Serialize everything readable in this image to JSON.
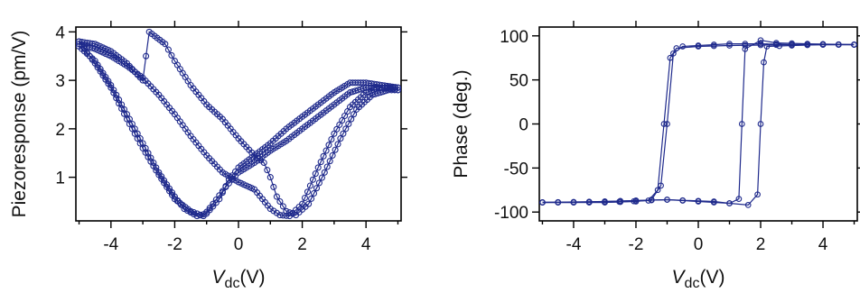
{
  "colors": {
    "series": "#1f2a8c",
    "axis": "#000000",
    "background": "#ffffff"
  },
  "chart_data": [
    {
      "type": "scatter",
      "ylabel": "Piezoresponse (pm/V)",
      "xlabel_main": "V",
      "xlabel_sub": "dc",
      "xlabel_unit": "(V)",
      "xlim": [
        -5.1,
        5.1
      ],
      "ylim": [
        0.1,
        4.1
      ],
      "xticks": [
        -4,
        -2,
        0,
        2,
        4
      ],
      "yticks": [
        1,
        2,
        3,
        4
      ],
      "xtick_labels": [
        "-4",
        "-2",
        "0",
        "2",
        "4"
      ],
      "ytick_labels": [
        "1",
        "2",
        "3",
        "4"
      ],
      "grid": false,
      "series": [
        {
          "values": [
            [
              -5.0,
              3.75
            ],
            [
              -4.5,
              3.65
            ],
            [
              -4.0,
              3.5
            ],
            [
              -3.5,
              3.3
            ],
            [
              -3.0,
              3.05
            ],
            [
              -2.5,
              2.7
            ],
            [
              -2.0,
              2.3
            ],
            [
              -1.5,
              1.85
            ],
            [
              -1.0,
              1.45
            ],
            [
              -0.5,
              1.1
            ],
            [
              0.0,
              0.9
            ],
            [
              0.5,
              0.75
            ],
            [
              1.0,
              0.35
            ],
            [
              1.3,
              0.22
            ],
            [
              1.6,
              0.2
            ],
            [
              2.0,
              0.45
            ],
            [
              2.5,
              1.2
            ],
            [
              3.0,
              1.9
            ],
            [
              3.5,
              2.45
            ],
            [
              4.0,
              2.75
            ],
            [
              4.5,
              2.85
            ],
            [
              5.0,
              2.85
            ]
          ]
        },
        {
          "values": [
            [
              5.0,
              2.85
            ],
            [
              4.5,
              2.9
            ],
            [
              4.0,
              2.95
            ],
            [
              3.5,
              2.95
            ],
            [
              3.0,
              2.75
            ],
            [
              2.5,
              2.5
            ],
            [
              2.0,
              2.25
            ],
            [
              1.5,
              2.0
            ],
            [
              1.0,
              1.7
            ],
            [
              0.5,
              1.45
            ],
            [
              0.0,
              1.2
            ],
            [
              -0.3,
              0.95
            ],
            [
              -0.6,
              0.55
            ],
            [
              -1.0,
              0.25
            ],
            [
              -1.3,
              0.2
            ],
            [
              -1.7,
              0.35
            ],
            [
              -2.0,
              0.6
            ],
            [
              -2.5,
              1.1
            ],
            [
              -3.0,
              1.7
            ],
            [
              -3.5,
              2.3
            ],
            [
              -4.0,
              2.9
            ],
            [
              -4.5,
              3.4
            ],
            [
              -5.0,
              3.7
            ]
          ]
        },
        {
          "values": [
            [
              -5.0,
              3.8
            ],
            [
              -4.5,
              3.75
            ],
            [
              -4.0,
              3.6
            ],
            [
              -3.5,
              3.35
            ],
            [
              -3.0,
              3.0
            ],
            [
              -2.8,
              4.0
            ],
            [
              -2.3,
              3.75
            ],
            [
              -2.0,
              3.4
            ],
            [
              -1.5,
              2.9
            ],
            [
              -1.0,
              2.5
            ],
            [
              -0.5,
              2.2
            ],
            [
              0.0,
              1.8
            ],
            [
              0.5,
              1.45
            ],
            [
              0.8,
              1.3
            ],
            [
              1.0,
              1.0
            ],
            [
              1.2,
              0.6
            ],
            [
              1.5,
              0.3
            ],
            [
              1.8,
              0.22
            ],
            [
              2.2,
              0.45
            ],
            [
              2.7,
              1.1
            ],
            [
              3.2,
              1.8
            ],
            [
              3.7,
              2.4
            ],
            [
              4.2,
              2.7
            ],
            [
              4.7,
              2.8
            ],
            [
              5.0,
              2.8
            ]
          ]
        },
        {
          "values": [
            [
              5.0,
              2.8
            ],
            [
              4.5,
              2.85
            ],
            [
              4.0,
              2.85
            ],
            [
              3.5,
              2.75
            ],
            [
              3.0,
              2.5
            ],
            [
              2.5,
              2.25
            ],
            [
              2.0,
              2.0
            ],
            [
              1.5,
              1.75
            ],
            [
              1.0,
              1.55
            ],
            [
              0.5,
              1.3
            ],
            [
              0.0,
              1.1
            ],
            [
              -0.4,
              0.8
            ],
            [
              -0.8,
              0.45
            ],
            [
              -1.1,
              0.2
            ],
            [
              -1.5,
              0.3
            ],
            [
              -2.0,
              0.55
            ],
            [
              -2.5,
              1.05
            ],
            [
              -3.0,
              1.6
            ],
            [
              -3.5,
              2.2
            ],
            [
              -4.0,
              2.85
            ],
            [
              -4.5,
              3.35
            ],
            [
              -5.0,
              3.8
            ]
          ]
        }
      ]
    },
    {
      "type": "line",
      "ylabel": "Phase (deg.)",
      "xlabel_main": "V",
      "xlabel_sub": "dc",
      "xlabel_unit": "(V)",
      "xlim": [
        -5.1,
        5.1
      ],
      "ylim": [
        -110,
        110
      ],
      "xticks": [
        -4,
        -2,
        0,
        2,
        4
      ],
      "yticks": [
        -100,
        -50,
        0,
        50,
        100
      ],
      "xtick_labels": [
        "-4",
        "-2",
        "0",
        "2",
        "4"
      ],
      "ytick_labels": [
        "-100",
        "-50",
        "0",
        "50",
        "100"
      ],
      "grid": false,
      "series": [
        {
          "values": [
            [
              -5.0,
              -89
            ],
            [
              -4.0,
              -89
            ],
            [
              -3.0,
              -88
            ],
            [
              -2.0,
              -87
            ],
            [
              -1.0,
              -86
            ],
            [
              0.0,
              -88
            ],
            [
              1.0,
              -90
            ],
            [
              1.6,
              -92
            ],
            [
              1.9,
              -80
            ],
            [
              2.0,
              0
            ],
            [
              2.1,
              70
            ],
            [
              2.2,
              88
            ],
            [
              3.0,
              89
            ],
            [
              4.0,
              90
            ],
            [
              5.0,
              90
            ]
          ]
        },
        {
          "values": [
            [
              5.0,
              90
            ],
            [
              4.0,
              90
            ],
            [
              3.0,
              90
            ],
            [
              2.0,
              91
            ],
            [
              1.0,
              91
            ],
            [
              0.0,
              89
            ],
            [
              -0.5,
              88
            ],
            [
              -0.8,
              80
            ],
            [
              -1.0,
              0
            ],
            [
              -1.2,
              -70
            ],
            [
              -1.5,
              -86
            ],
            [
              -2.0,
              -88
            ],
            [
              -3.0,
              -89
            ],
            [
              -4.0,
              -89
            ],
            [
              -5.0,
              -89
            ]
          ]
        },
        {
          "values": [
            [
              -5.0,
              -89
            ],
            [
              -3.0,
              -88
            ],
            [
              -1.0,
              -86
            ],
            [
              0.5,
              -88
            ],
            [
              1.0,
              -90
            ],
            [
              1.3,
              -85
            ],
            [
              1.4,
              0
            ],
            [
              1.5,
              85
            ],
            [
              2.0,
              95
            ],
            [
              2.5,
              92
            ],
            [
              3.5,
              91
            ],
            [
              5.0,
              90
            ]
          ]
        },
        {
          "values": [
            [
              5.0,
              90
            ],
            [
              3.0,
              90
            ],
            [
              1.0,
              89
            ],
            [
              0.0,
              88
            ],
            [
              -0.7,
              86
            ],
            [
              -0.9,
              75
            ],
            [
              -1.1,
              0
            ],
            [
              -1.3,
              -75
            ],
            [
              -1.6,
              -87
            ],
            [
              -3.0,
              -89
            ],
            [
              -5.0,
              -89
            ]
          ]
        }
      ]
    }
  ]
}
